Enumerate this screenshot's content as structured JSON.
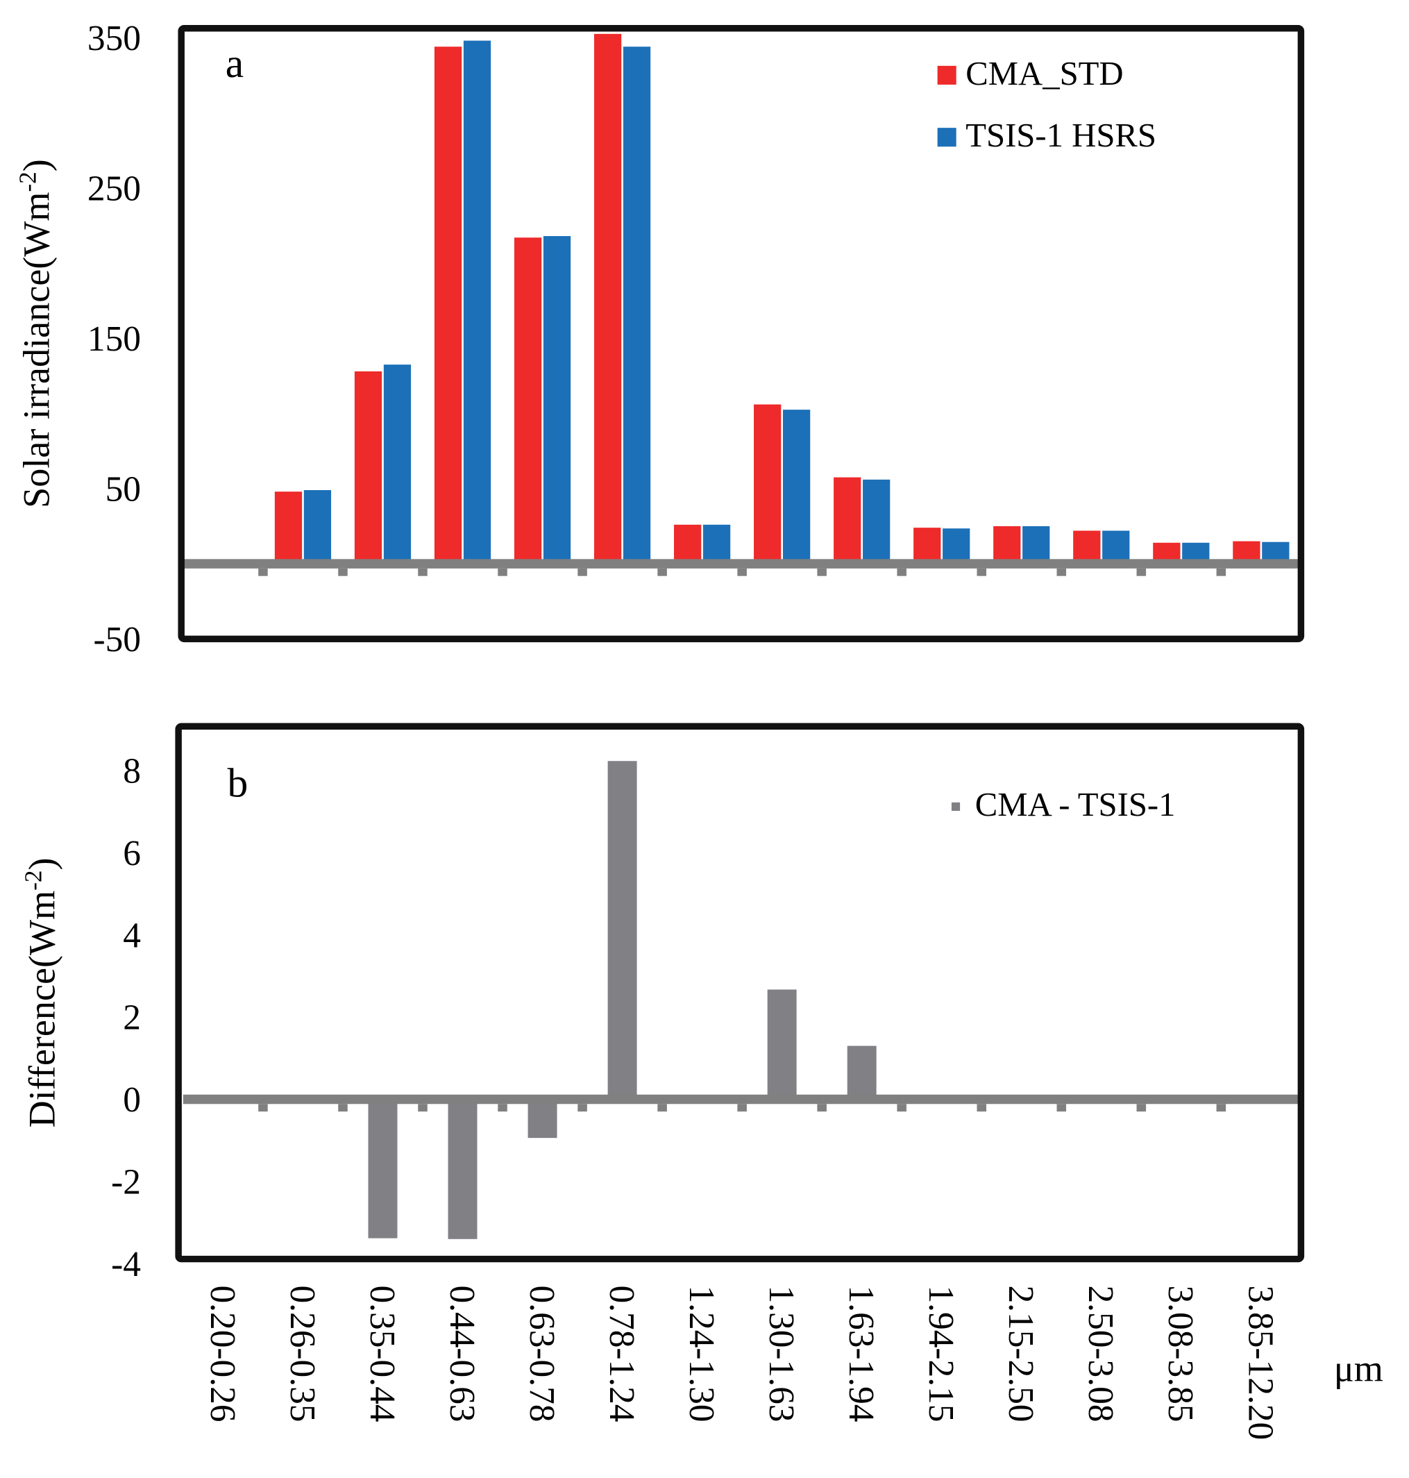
{
  "chart_data": [
    {
      "type": "bar",
      "panel_label": "a",
      "ylabel": "Solar irradiance(Wm",
      "ylabel_sup": "-2",
      "ylabel_close": ")",
      "ylim": [
        -50,
        350
      ],
      "yticks": [
        350,
        250,
        150,
        50,
        -50
      ],
      "categories": [
        "0.20-0.26",
        "0.26-0.35",
        "0.35-0.44",
        "0.44-0.63",
        "0.63-0.78",
        "0.78-1.24",
        "1.24-1.30",
        "1.30-1.63",
        "1.63-1.94",
        "1.94-2.15",
        "2.15-2.50",
        "2.50-3.08",
        "3.08-3.85",
        "3.85-12.20"
      ],
      "legend_position": "top-right",
      "series": [
        {
          "name": "CMA_STD",
          "color": "#ee2a2a",
          "values": [
            0,
            48,
            128,
            344,
            217,
            352.5,
            26,
            106,
            57.5,
            24,
            25,
            22,
            14,
            15
          ]
        },
        {
          "name": "TSIS-1 HSRS",
          "color": "#1c70b8",
          "values": [
            0,
            49,
            132.5,
            348,
            218,
            344,
            26,
            102.5,
            56,
            23.5,
            25,
            22,
            14,
            14.5
          ]
        }
      ]
    },
    {
      "type": "bar",
      "panel_label": "b",
      "ylabel": "Difference(Wm",
      "ylabel_sup": "-2",
      "ylabel_close": ")",
      "ylim": [
        -4,
        8
      ],
      "yticks": [
        8,
        6,
        4,
        2,
        0,
        -2,
        -4
      ],
      "xlabel": "μm",
      "categories": [
        "0.20-0.26",
        "0.26-0.35",
        "0.35-0.44",
        "0.44-0.63",
        "0.63-0.78",
        "0.78-1.24",
        "1.24-1.30",
        "1.30-1.63",
        "1.63-1.94",
        "1.94-2.15",
        "2.15-2.50",
        "2.50-3.08",
        "3.08-3.85",
        "3.85-12.20"
      ],
      "legend_position": "top-right",
      "series": [
        {
          "name": "CMA - TSIS-1",
          "color": "#808085",
          "values": [
            0,
            -0.05,
            -3.38,
            -3.4,
            -0.94,
            8.23,
            0,
            2.67,
            1.3,
            0.05,
            0,
            0,
            0,
            0.05
          ]
        }
      ]
    }
  ]
}
